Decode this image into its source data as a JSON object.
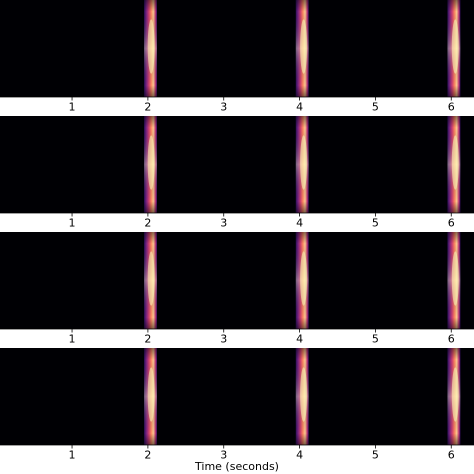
{
  "chart_data": {
    "type": "heatmap",
    "xlabel": "Time (seconds)",
    "xlim": [
      0.05,
      6.3
    ],
    "x_ticks": [
      1,
      2,
      3,
      4,
      5,
      6
    ],
    "x_tick_labels": [
      "1",
      "2",
      "3",
      "4",
      "5",
      "6"
    ],
    "colormap": "magma",
    "panels": [
      {
        "events": [
          {
            "x_start": 1.95,
            "x_end": 2.12,
            "peak_x": 2.03
          },
          {
            "x_start": 3.95,
            "x_end": 4.12,
            "peak_x": 4.04
          },
          {
            "x_start": 5.95,
            "x_end": 6.12,
            "peak_x": 6.04
          }
        ]
      },
      {
        "events": [
          {
            "x_start": 1.95,
            "x_end": 2.12,
            "peak_x": 2.03
          },
          {
            "x_start": 3.95,
            "x_end": 4.12,
            "peak_x": 4.04
          },
          {
            "x_start": 5.95,
            "x_end": 6.12,
            "peak_x": 6.04
          }
        ]
      },
      {
        "events": [
          {
            "x_start": 1.95,
            "x_end": 2.12,
            "peak_x": 2.03
          },
          {
            "x_start": 3.95,
            "x_end": 4.12,
            "peak_x": 4.04
          },
          {
            "x_start": 5.95,
            "x_end": 6.12,
            "peak_x": 6.04
          }
        ]
      },
      {
        "events": [
          {
            "x_start": 1.95,
            "x_end": 2.12,
            "peak_x": 2.03
          },
          {
            "x_start": 3.95,
            "x_end": 4.12,
            "peak_x": 4.04
          },
          {
            "x_start": 5.95,
            "x_end": 6.12,
            "peak_x": 6.04
          }
        ]
      }
    ]
  }
}
